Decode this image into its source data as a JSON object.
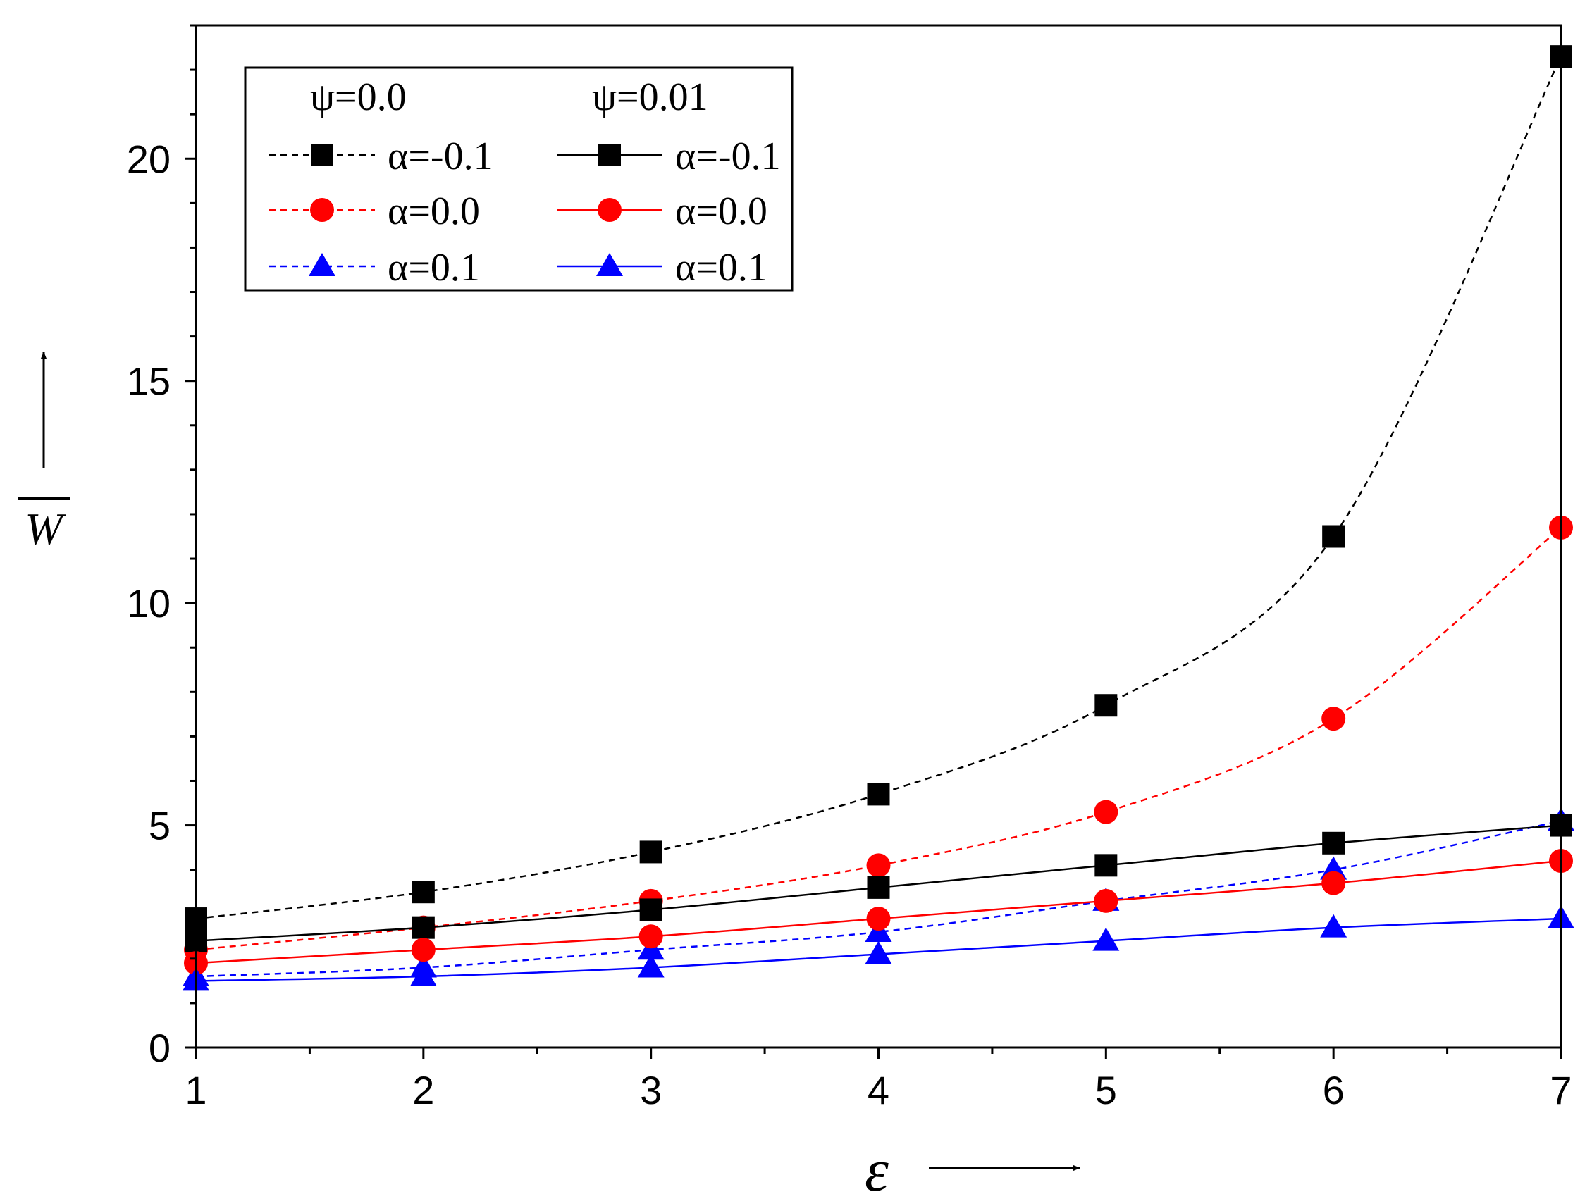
{
  "chart_data": {
    "type": "line",
    "title": "",
    "xlabel": "ε",
    "ylabel": "W",
    "ylabel_overline": true,
    "xlim": [
      1,
      7
    ],
    "ylim": [
      0,
      23
    ],
    "x_ticks": [
      1,
      2,
      3,
      4,
      5,
      6,
      7
    ],
    "y_ticks": [
      0,
      5,
      10,
      15,
      20
    ],
    "grid": false,
    "legend_position": "top-left",
    "legend_headers": [
      "ψ=0.0",
      "ψ=0.01"
    ],
    "x": [
      1,
      2,
      3,
      4,
      5,
      6,
      7
    ],
    "series": [
      {
        "name": "α=-0.1",
        "group": "ψ=0.0",
        "color": "#000000",
        "marker": "square",
        "line": "dashed",
        "values": [
          2.9,
          3.5,
          4.4,
          5.7,
          7.7,
          11.5,
          22.3
        ]
      },
      {
        "name": "α=0.0",
        "group": "ψ=0.0",
        "color": "#ff0000",
        "marker": "circle",
        "line": "dashed",
        "values": [
          2.2,
          2.7,
          3.3,
          4.1,
          5.3,
          7.4,
          11.7
        ]
      },
      {
        "name": "α=0.1",
        "group": "ψ=0.0",
        "color": "#0000ff",
        "marker": "triangle",
        "line": "dashed",
        "values": [
          1.6,
          1.8,
          2.2,
          2.6,
          3.3,
          4.0,
          5.1
        ]
      },
      {
        "name": "α=-0.1",
        "group": "ψ=0.01",
        "color": "#000000",
        "marker": "square",
        "line": "solid",
        "values": [
          2.4,
          2.7,
          3.1,
          3.6,
          4.1,
          4.6,
          5.0
        ]
      },
      {
        "name": "α=0.0",
        "group": "ψ=0.01",
        "color": "#ff0000",
        "marker": "circle",
        "line": "solid",
        "values": [
          1.9,
          2.2,
          2.5,
          2.9,
          3.3,
          3.7,
          4.2
        ]
      },
      {
        "name": "α=0.1",
        "group": "ψ=0.01",
        "color": "#0000ff",
        "marker": "triangle",
        "line": "solid",
        "values": [
          1.5,
          1.6,
          1.8,
          2.1,
          2.4,
          2.7,
          2.9
        ]
      }
    ]
  }
}
